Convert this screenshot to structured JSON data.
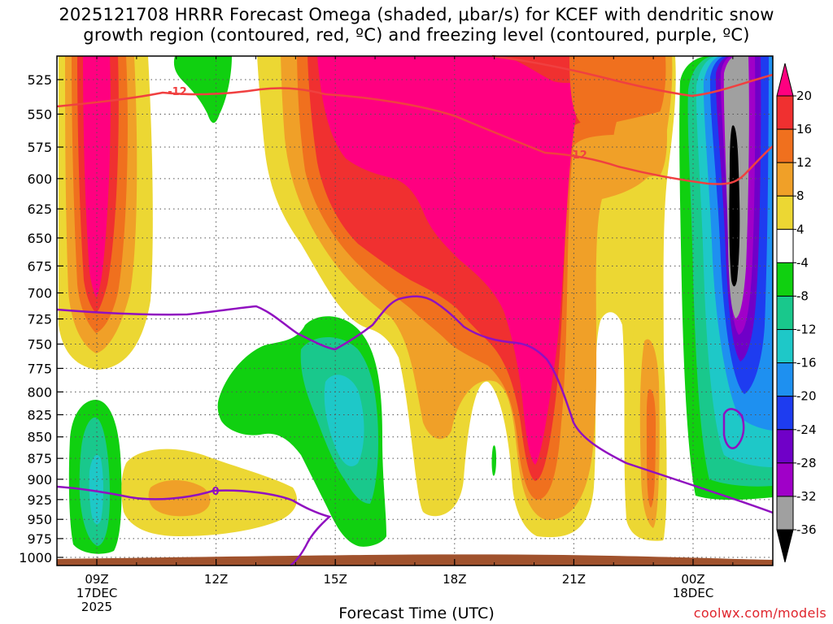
{
  "chart_data": {
    "type": "heatmap",
    "title_line1": "2025121708 HRRR Forecast Omega (shaded, μbar/s) for KCEF with dendritic snow",
    "title_line2": "growth region (contoured, red, ºC) and freezing level (contoured, purple, ºC)",
    "xlabel": "Forecast Time (UTC)",
    "ylabel": "",
    "y_ticks": [
      525,
      550,
      575,
      600,
      625,
      650,
      675,
      700,
      725,
      750,
      775,
      800,
      825,
      850,
      875,
      900,
      925,
      950,
      975,
      1000
    ],
    "x_ticks": [
      {
        "label": "09Z",
        "sub1": "17DEC",
        "sub2": "2025"
      },
      {
        "label": "12Z",
        "sub1": "",
        "sub2": ""
      },
      {
        "label": "15Z",
        "sub1": "",
        "sub2": ""
      },
      {
        "label": "18Z",
        "sub1": "",
        "sub2": ""
      },
      {
        "label": "21Z",
        "sub1": "",
        "sub2": ""
      },
      {
        "label": "00Z",
        "sub1": "18DEC",
        "sub2": ""
      }
    ],
    "colorbar": {
      "labels": [
        "20",
        "16",
        "12",
        "8",
        "4",
        "-4",
        "-8",
        "-12",
        "-16",
        "-20",
        "-24",
        "-28",
        "-32",
        "-36"
      ],
      "colors": [
        "#ff0080",
        "#f03030",
        "#f0701e",
        "#f0a028",
        "#ecd733",
        "#ffffff",
        "#10d010",
        "#19c88c",
        "#1ec8c8",
        "#1e90f0",
        "#1e3cf0",
        "#7000c8",
        "#a000c8",
        "#a0a0a0",
        "#000000"
      ]
    },
    "contour_labels": {
      "dgz_1": "-12",
      "dgz_2": "-12",
      "freezing": "0"
    },
    "colors": {
      "dgz_contour": "#f04040",
      "freezing_contour": "#9010c0",
      "ground": "#a0522d",
      "grid": "#909090"
    }
  },
  "watermark": "coolwx.com/models"
}
